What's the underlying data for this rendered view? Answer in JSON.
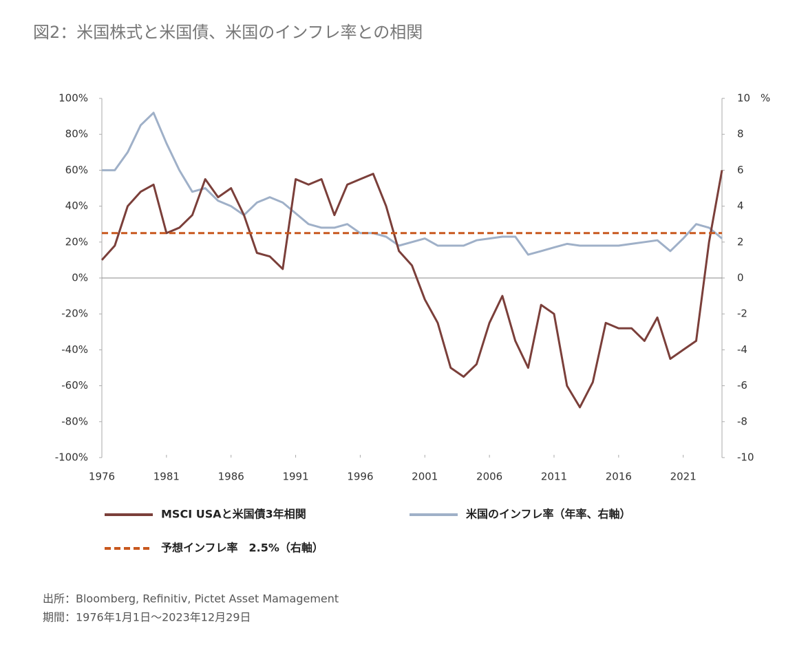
{
  "chart_data": {
    "type": "line",
    "title": "図2：米国株式と米国債、米国のインフレ率との相関",
    "x": [
      1976,
      1977,
      1978,
      1979,
      1980,
      1981,
      1982,
      1983,
      1984,
      1985,
      1986,
      1987,
      1988,
      1989,
      1990,
      1991,
      1992,
      1993,
      1994,
      1995,
      1996,
      1997,
      1998,
      1999,
      2000,
      2001,
      2002,
      2003,
      2004,
      2005,
      2006,
      2007,
      2008,
      2009,
      2010,
      2011,
      2012,
      2013,
      2014,
      2015,
      2016,
      2017,
      2018,
      2019,
      2020,
      2021,
      2022,
      2023,
      2024
    ],
    "xlim": [
      1976,
      2024
    ],
    "xticks": [
      1976,
      1981,
      1986,
      1991,
      1996,
      2001,
      2006,
      2011,
      2016,
      2021
    ],
    "ylim": [
      -100,
      100
    ],
    "yticks": [
      {
        "value": 100,
        "label": "100%"
      },
      {
        "value": 80,
        "label": "80%"
      },
      {
        "value": 60,
        "label": "60%"
      },
      {
        "value": 40,
        "label": "40%"
      },
      {
        "value": 20,
        "label": "20%"
      },
      {
        "value": 0,
        "label": "0%"
      },
      {
        "value": -20,
        "label": "-20%"
      },
      {
        "value": -40,
        "label": "-40%"
      },
      {
        "value": -60,
        "label": "-60%"
      },
      {
        "value": -80,
        "label": "-80%"
      },
      {
        "value": -100,
        "label": "-100%"
      }
    ],
    "y2lim": [
      -10,
      10
    ],
    "y2ticks": [
      10,
      8,
      6,
      4,
      2,
      0,
      -2,
      -4,
      -6,
      -8,
      -10
    ],
    "y2label": "%",
    "series": [
      {
        "name": "MSCI USAと米国債3年相関",
        "color": "#7b3f3a",
        "values": [
          10,
          18,
          40,
          48,
          52,
          25,
          28,
          35,
          55,
          45,
          50,
          35,
          14,
          12,
          5,
          55,
          52,
          55,
          35,
          52,
          55,
          58,
          40,
          15,
          7,
          -12,
          -25,
          -50,
          -55,
          -48,
          -25,
          -10,
          -35,
          -50,
          -15,
          -20,
          -60,
          -72,
          -58,
          -25,
          -28,
          -28,
          -35,
          -22,
          -45,
          -40,
          -35,
          20,
          60
        ]
      },
      {
        "name": "米国のインフレ率（年率、右軸）",
        "color": "#9fb0c8",
        "axis": "y2",
        "values": [
          6,
          6,
          7,
          8.5,
          9.2,
          7.5,
          6,
          4.8,
          5,
          4.3,
          4,
          3.5,
          4.2,
          4.5,
          4.2,
          3.6,
          3,
          2.8,
          2.8,
          3,
          2.5,
          2.5,
          2.3,
          1.8,
          2,
          2.2,
          1.8,
          1.8,
          1.8,
          2.1,
          2.2,
          2.3,
          2.3,
          1.3,
          1.5,
          1.7,
          1.9,
          1.8,
          1.8,
          1.8,
          1.8,
          1.9,
          2,
          2.1,
          1.5,
          2.2,
          3,
          2.8,
          2.2
        ]
      },
      {
        "name": "予想インフレ率　2.5%（右軸）",
        "color": "#c8581e",
        "axis": "y2",
        "dashed": true,
        "x": [
          1976,
          2024
        ],
        "values": [
          2.5,
          2.5
        ]
      }
    ],
    "notes": [
      "出所：Bloomberg, Refinitiv, Pictet Asset Mamagement",
      "期間：1976年1月1日～2023年12月29日"
    ]
  }
}
